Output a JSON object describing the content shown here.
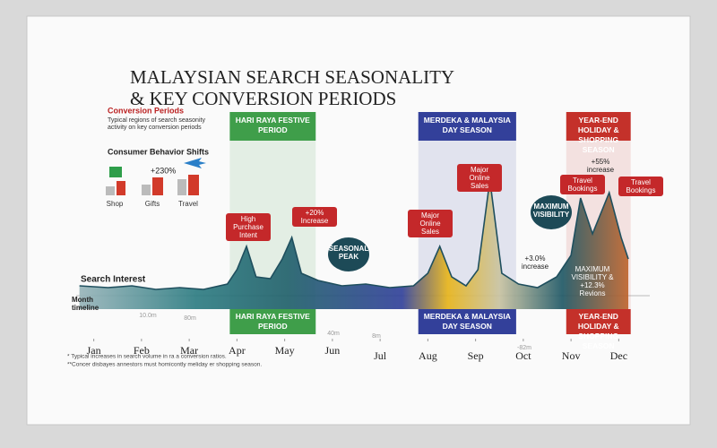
{
  "title_lines": [
    "MALAYSIAN SEARCH SEASONALITY",
    "& KEY CONVERSION PERIODS"
  ],
  "legend": {
    "conversion_title": "Conversion Periods",
    "conversion_text": "Typical regions of search seasonity activity on key conversion periods",
    "shifts_title": "Consumer Behavior Shifts",
    "shift_change": "+230%",
    "shift_labels": [
      "Shop",
      "Gifts",
      "Travel"
    ]
  },
  "chart_data": {
    "type": "area",
    "y_label": "Search Interest",
    "x_label": "Month timeline",
    "x": [
      -0.3,
      0.3,
      0.8,
      1.3,
      1.8,
      2.3,
      2.8,
      3.0,
      3.2,
      3.4,
      3.7,
      3.95,
      4.15,
      4.35,
      4.7,
      5.2,
      5.7,
      6.2,
      6.7,
      7.0,
      7.25,
      7.5,
      7.8,
      8.05,
      8.3,
      8.55,
      8.9,
      9.3,
      9.7,
      10.0,
      10.2,
      10.45,
      10.8,
      11.05,
      11.2
    ],
    "values": [
      13,
      12,
      13,
      11,
      12,
      11,
      14,
      22,
      35,
      18,
      17,
      28,
      40,
      20,
      16,
      13,
      14,
      12,
      13,
      20,
      35,
      18,
      13,
      22,
      72,
      20,
      14,
      12,
      18,
      30,
      62,
      42,
      65,
      40,
      28
    ],
    "line_color": "#1f4f5e",
    "xlim": [
      -0.5,
      11.5
    ],
    "ylim": [
      0,
      100
    ],
    "xticks": [
      {
        "value": 0,
        "label": "Jan"
      },
      {
        "value": 1,
        "label": "Feb"
      },
      {
        "value": 2,
        "label": "Mar"
      },
      {
        "value": 3,
        "label": "Apr"
      },
      {
        "value": 4,
        "label": "May"
      },
      {
        "value": 5,
        "label": "Jun"
      },
      {
        "value": 6,
        "label": "Jul"
      },
      {
        "value": 7,
        "label": "Aug"
      },
      {
        "value": 8,
        "label": "Sep"
      },
      {
        "value": 9,
        "label": "Oct"
      },
      {
        "value": 10,
        "label": "Nov"
      },
      {
        "value": 11,
        "label": "Dec"
      }
    ],
    "bands": [
      {
        "label": "HARI RAYA FESTIVE PERIOD",
        "start": 2.85,
        "end": 4.65,
        "color": "#3f9e4a"
      },
      {
        "label": "MERDEKA & MALAYSIA DAY SEASON",
        "start": 6.8,
        "end": 8.85,
        "color": "#33409a"
      },
      {
        "label": "YEAR-END HOLIDAY & SHOPPING SEASON",
        "start": 9.9,
        "end": 11.25,
        "color": "#c4312a"
      }
    ],
    "annotations": [
      "High Purchase Intent",
      "+20% Increase",
      "SEASONAL PEAK",
      "Major Online Sales",
      "Major Online Sales",
      "+3.0% increase",
      "MAXIMUM VISIBILITY",
      "+55% increase",
      "Travel Bookings",
      "Travel Bookings",
      "MAXIMUM VISIBILITY & +12.3% Revions"
    ],
    "axis_notes": [
      "10.0m",
      "80m",
      "40m",
      "8m",
      "-82m"
    ]
  },
  "footnotes": [
    "* Typical increases in search volume in ra a conversion ratios.",
    "**Concer disbayes annestors must homicontly meliday er shopping season."
  ]
}
